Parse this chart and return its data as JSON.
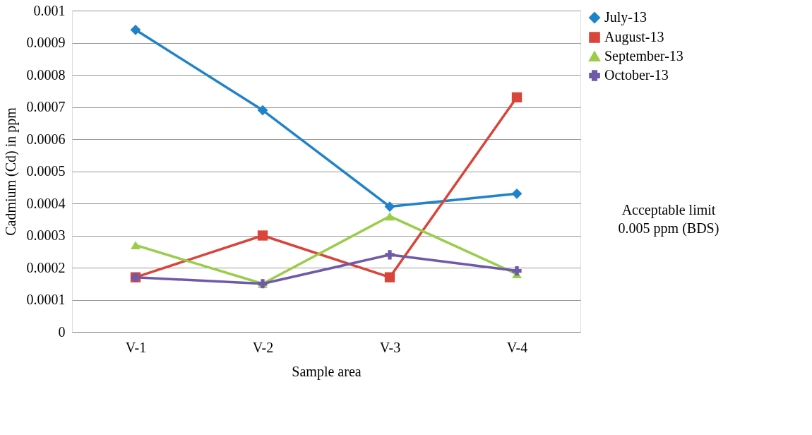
{
  "chart_data": {
    "type": "line",
    "xlabel": "Sample area",
    "ylabel": "Cadmium (Cd) in ppm",
    "categories": [
      "V-1",
      "V-2",
      "V-3",
      "V-4"
    ],
    "series": [
      {
        "name": "July-13",
        "color": "#1f83c9",
        "marker": "diamond",
        "values": [
          0.00094,
          0.00069,
          0.00039,
          0.00043
        ]
      },
      {
        "name": "August-13",
        "color": "#d9453a",
        "marker": "square",
        "values": [
          0.00017,
          0.0003,
          0.00017,
          0.00073
        ]
      },
      {
        "name": "September-13",
        "color": "#9acd4a",
        "marker": "triangle",
        "values": [
          0.00027,
          0.00015,
          0.00036,
          0.00018
        ]
      },
      {
        "name": "October-13",
        "color": "#6f5aa8",
        "marker": "cross",
        "values": [
          0.00017,
          0.00015,
          0.00024,
          0.00019
        ]
      }
    ],
    "ylim": [
      0,
      0.001
    ],
    "yticks": [
      0,
      0.0001,
      0.0002,
      0.0003,
      0.0004,
      0.0005,
      0.0006,
      0.0007,
      0.0008,
      0.0009,
      0.001
    ],
    "grid": "y",
    "legend": "right",
    "line_style": "solid",
    "annotations": [
      "Acceptable limit\n0.005 ppm (BDS)"
    ]
  }
}
